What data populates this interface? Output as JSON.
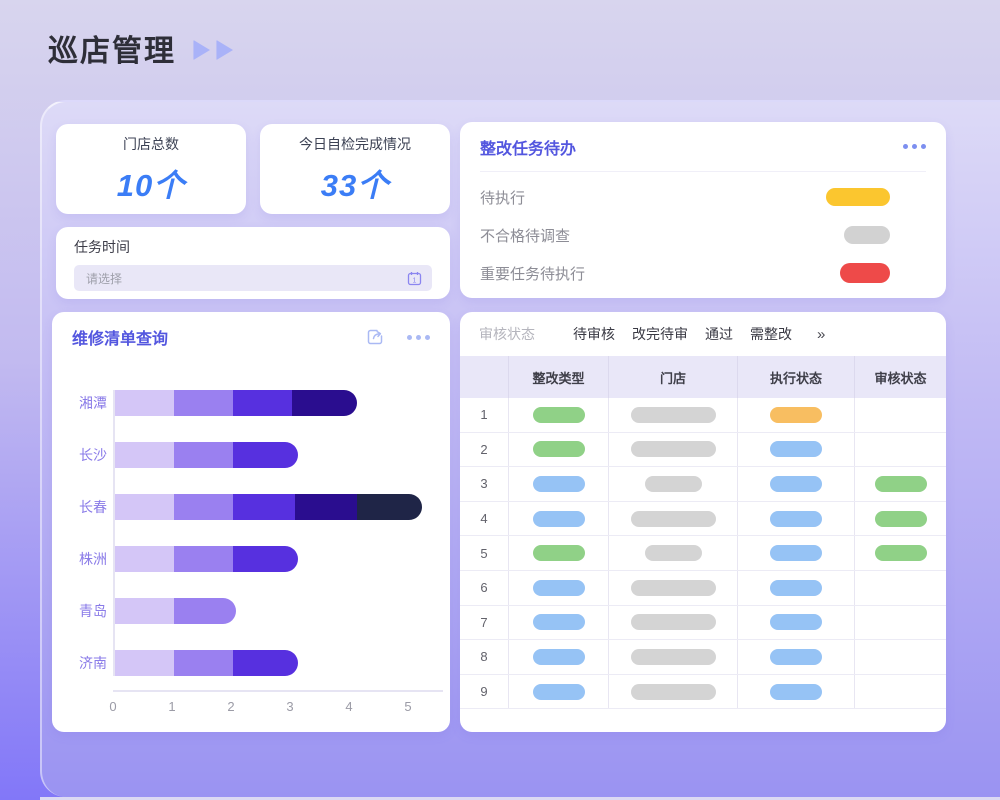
{
  "header": {
    "title": "巡店管理",
    "decor_icon": "double-play-triangles",
    "decor_color": "#a9b2f8"
  },
  "stat_cards": [
    {
      "label": "门店总数",
      "value": "10个"
    },
    {
      "label": "今日自检完成情况",
      "value": "33个"
    }
  ],
  "task_time": {
    "label": "任务时间",
    "placeholder": "请选择",
    "icon": "calendar-icon"
  },
  "todo_panel": {
    "title": "整改任务待办",
    "menu_icon": "ellipsis-icon",
    "items": [
      {
        "label": "待执行",
        "pill_color": "#fbc62f",
        "pill_w": 64,
        "pill_h": 18
      },
      {
        "label": "不合格待调查",
        "pill_color": "#d2d2d2",
        "pill_w": 46,
        "pill_h": 18
      },
      {
        "label": "重要任务待执行",
        "pill_color": "#ee4a49",
        "pill_w": 50,
        "pill_h": 20
      }
    ]
  },
  "chart_panel": {
    "title": "维修清单查询",
    "icons": [
      "share-icon",
      "ellipsis-icon"
    ]
  },
  "chart_data": {
    "type": "bar",
    "orientation": "horizontal",
    "stacked": true,
    "title": "维修清单查询",
    "categories": [
      "湘潭",
      "长沙",
      "长春",
      "株洲",
      "青岛",
      "济南"
    ],
    "bars": [
      {
        "label": "湘潭",
        "values": [
          1,
          1,
          1,
          1.1
        ]
      },
      {
        "label": "长沙",
        "values": [
          1,
          1,
          1.1
        ]
      },
      {
        "label": "长春",
        "values": [
          1,
          1,
          1.05,
          1.05,
          1.1
        ]
      },
      {
        "label": "株洲",
        "values": [
          1,
          1,
          1.1
        ]
      },
      {
        "label": "青岛",
        "values": [
          1,
          1.05
        ]
      },
      {
        "label": "济南",
        "values": [
          1,
          1,
          1.1
        ]
      }
    ],
    "segment_colors": [
      "#d4c6f7",
      "#9a80f0",
      "#5730df",
      "#2a0d8f",
      "#1f2547"
    ],
    "x_ticks": [
      0,
      1,
      2,
      3,
      4,
      5
    ],
    "xlim": [
      0,
      5.2
    ],
    "xlabel": "",
    "ylabel": "",
    "grid": false,
    "legend": "none"
  },
  "review_panel": {
    "filter_label": "审核状态",
    "tabs": [
      "待审核",
      "改完待审",
      "通过",
      "需整改"
    ],
    "more_label": "»",
    "table": {
      "headers": [
        "",
        "整改类型",
        "门店",
        "执行状态",
        "审核状态"
      ],
      "rows": [
        {
          "no": "1",
          "type": "green",
          "store": "long",
          "exec": "orange",
          "audit": ""
        },
        {
          "no": "2",
          "type": "green",
          "store": "long",
          "exec": "blue",
          "audit": ""
        },
        {
          "no": "3",
          "type": "blue",
          "store": "short",
          "exec": "blue",
          "audit": "green"
        },
        {
          "no": "4",
          "type": "blue",
          "store": "long",
          "exec": "blue",
          "audit": "green"
        },
        {
          "no": "5",
          "type": "green",
          "store": "short",
          "exec": "blue",
          "audit": "green"
        },
        {
          "no": "6",
          "type": "blue",
          "store": "long",
          "exec": "blue",
          "audit": ""
        },
        {
          "no": "7",
          "type": "blue",
          "store": "long",
          "exec": "blue",
          "audit": ""
        },
        {
          "no": "8",
          "type": "blue",
          "store": "long",
          "exec": "blue",
          "audit": ""
        },
        {
          "no": "9",
          "type": "blue",
          "store": "long",
          "exec": "blue",
          "audit": ""
        }
      ]
    },
    "pill_colors": {
      "green": "#90d187",
      "blue": "#96c3f5",
      "orange": "#f8be61",
      "gray": "#d4d4d4"
    }
  },
  "colors": {
    "page_top": "#d8d5ee",
    "page_bottom": "#8277f8",
    "panel_top": "#dddaf7",
    "panel_bottom": "#9a93f2",
    "accent_purple": "#5356df",
    "stat_blue": "#3b7df6"
  }
}
